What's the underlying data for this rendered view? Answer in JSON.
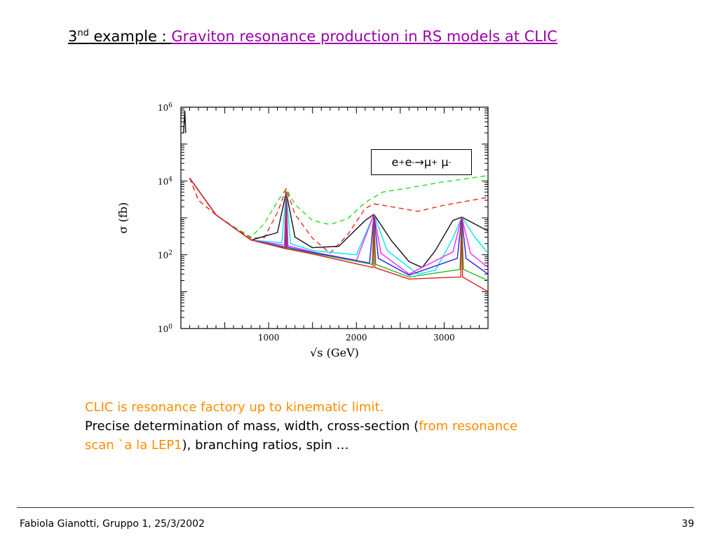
{
  "slide": {
    "title_num": "3",
    "title_sup": "nd",
    "title_word": " example : ",
    "title_topic": "Graviton resonance production  in  RS models  at CLIC"
  },
  "notes": {
    "line1": "CLIC  is resonance factory up to kinematic limit.",
    "line2_pre": "Precise determination of mass, width, cross-section (",
    "line2_orange": "from resonance",
    "line3_orange": "scan  `a  la  LEP1",
    "line3_post": "), branching ratios, spin …"
  },
  "footer": {
    "left": "Fabiola Gianotti,  Gruppo 1, 25/3/2002",
    "page": "39"
  },
  "chart_data": {
    "type": "line",
    "title": "",
    "xlabel": "√s  (GeV)",
    "ylabel": "σ  (fb)",
    "xlim": [
      0,
      3500
    ],
    "ylim": [
      1,
      1000000
    ],
    "yscale": "log",
    "x_ticks": [
      1000,
      2000,
      3000
    ],
    "x_tick_labels": [
      "1000",
      "2000",
      "3000"
    ],
    "y_ticks": [
      1,
      100,
      10000,
      1000000
    ],
    "y_tick_labels": [
      {
        "base": "10",
        "exp": "0"
      },
      {
        "base": "10",
        "exp": "2"
      },
      {
        "base": "10",
        "exp": "4"
      },
      {
        "base": "10",
        "exp": "6"
      }
    ],
    "legend": {
      "text_e": "e",
      "sup_plus": "+",
      "sup_minus": "-",
      "arrow": " → ",
      "mu": "μ",
      "placement": "top-right"
    },
    "grid": false,
    "series": [
      {
        "color": "#20e020",
        "dash": true,
        "values": [
          [
            100,
            12000
          ],
          [
            200,
            3000
          ],
          [
            400,
            1200
          ],
          [
            600,
            580
          ],
          [
            800,
            300
          ],
          [
            950,
            700
          ],
          [
            1100,
            2800
          ],
          [
            1200,
            6200
          ],
          [
            1300,
            2300
          ],
          [
            1500,
            850
          ],
          [
            1700,
            660
          ],
          [
            1900,
            950
          ],
          [
            2100,
            2600
          ],
          [
            2300,
            5000
          ],
          [
            2600,
            6500
          ],
          [
            3000,
            9500
          ],
          [
            3500,
            14000
          ]
        ]
      },
      {
        "color": "#ff2020",
        "dash": true,
        "values": [
          [
            100,
            12000
          ],
          [
            200,
            3000
          ],
          [
            400,
            1200
          ],
          [
            600,
            560
          ],
          [
            800,
            280
          ],
          [
            950,
            290
          ],
          [
            1100,
            1400
          ],
          [
            1200,
            6200
          ],
          [
            1300,
            1250
          ],
          [
            1500,
            280
          ],
          [
            1700,
            110
          ],
          [
            1900,
            350
          ],
          [
            2100,
            1800
          ],
          [
            2200,
            2400
          ],
          [
            2400,
            2000
          ],
          [
            2700,
            1500
          ],
          [
            3000,
            2200
          ],
          [
            3500,
            3600
          ]
        ]
      },
      {
        "color": "#111111",
        "dash": false,
        "values": [
          [
            100,
            12000
          ],
          [
            400,
            1200
          ],
          [
            800,
            250
          ],
          [
            1100,
            400
          ],
          [
            1200,
            5000
          ],
          [
            1300,
            300
          ],
          [
            1500,
            155
          ],
          [
            1800,
            170
          ],
          [
            2100,
            850
          ],
          [
            2200,
            1250
          ],
          [
            2400,
            240
          ],
          [
            2600,
            65
          ],
          [
            2750,
            45
          ],
          [
            2900,
            130
          ],
          [
            3100,
            850
          ],
          [
            3200,
            1050
          ],
          [
            3350,
            680
          ],
          [
            3500,
            440
          ]
        ]
      },
      {
        "color": "#00e5ee",
        "dash": false,
        "values": [
          [
            100,
            12000
          ],
          [
            400,
            1200
          ],
          [
            800,
            250
          ],
          [
            1150,
            210
          ],
          [
            1200,
            5000
          ],
          [
            1250,
            200
          ],
          [
            1500,
            130
          ],
          [
            2000,
            100
          ],
          [
            2200,
            1250
          ],
          [
            2350,
            130
          ],
          [
            2700,
            30
          ],
          [
            2900,
            38
          ],
          [
            3100,
            280
          ],
          [
            3200,
            1050
          ],
          [
            3350,
            300
          ],
          [
            3500,
            110
          ]
        ]
      },
      {
        "color": "#ff20ff",
        "dash": false,
        "values": [
          [
            100,
            12000
          ],
          [
            400,
            1200
          ],
          [
            800,
            250
          ],
          [
            1180,
            180
          ],
          [
            1200,
            5000
          ],
          [
            1220,
            175
          ],
          [
            1500,
            120
          ],
          [
            2000,
            70
          ],
          [
            2200,
            1250
          ],
          [
            2280,
            110
          ],
          [
            2600,
            30
          ],
          [
            3100,
            120
          ],
          [
            3200,
            1050
          ],
          [
            3300,
            110
          ],
          [
            3500,
            45
          ]
        ]
      },
      {
        "color": "#2020ff",
        "dash": false,
        "values": [
          [
            100,
            12000
          ],
          [
            400,
            1200
          ],
          [
            800,
            250
          ],
          [
            1190,
            160
          ],
          [
            1200,
            5000
          ],
          [
            1210,
            160
          ],
          [
            1500,
            115
          ],
          [
            2150,
            60
          ],
          [
            2200,
            1250
          ],
          [
            2250,
            80
          ],
          [
            2600,
            28
          ],
          [
            3150,
            80
          ],
          [
            3200,
            1050
          ],
          [
            3250,
            80
          ],
          [
            3500,
            30
          ]
        ]
      },
      {
        "color": "#28b428",
        "dash": false,
        "values": [
          [
            100,
            12000
          ],
          [
            400,
            1200
          ],
          [
            800,
            250
          ],
          [
            1195,
            150
          ],
          [
            1200,
            5000
          ],
          [
            1205,
            150
          ],
          [
            1500,
            110
          ],
          [
            2180,
            55
          ],
          [
            2200,
            1250
          ],
          [
            2220,
            55
          ],
          [
            2600,
            25
          ],
          [
            3180,
            40
          ],
          [
            3200,
            1050
          ],
          [
            3220,
            40
          ],
          [
            3500,
            20
          ]
        ]
      },
      {
        "color": "#e02020",
        "dash": false,
        "values": [
          [
            100,
            12000
          ],
          [
            400,
            1200
          ],
          [
            800,
            250
          ],
          [
            1197,
            145
          ],
          [
            1200,
            5000
          ],
          [
            1203,
            145
          ],
          [
            1500,
            105
          ],
          [
            2190,
            45
          ],
          [
            2200,
            1250
          ],
          [
            2210,
            45
          ],
          [
            2600,
            22
          ],
          [
            3190,
            25
          ],
          [
            3200,
            1050
          ],
          [
            3210,
            25
          ],
          [
            3500,
            10
          ]
        ]
      }
    ],
    "low_energy_spike": {
      "x": 50,
      "values": [
        [
          30,
          200000
        ],
        [
          45,
          800000
        ],
        [
          55,
          200000
        ]
      ]
    }
  }
}
